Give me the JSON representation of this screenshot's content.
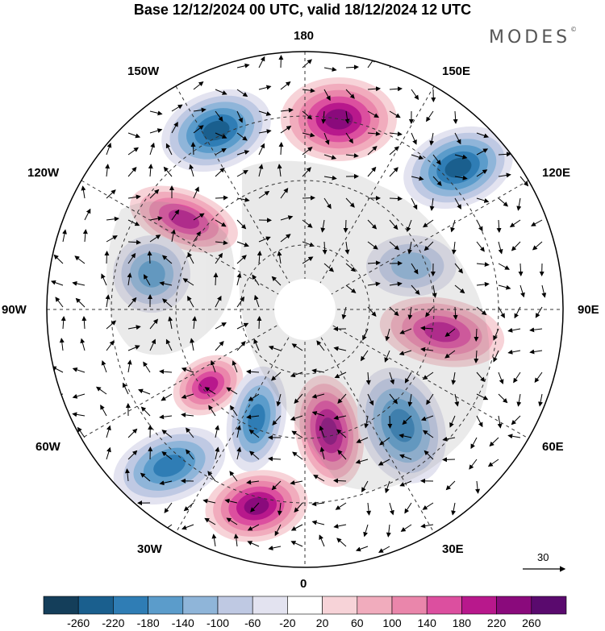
{
  "title": "Base 12/12/2024 00 UTC, valid 18/12/2024 12 UTC",
  "brand": "MODES",
  "brand_mark": "©",
  "longitude_labels": {
    "n180": "180",
    "w150": "150W",
    "e150": "150E",
    "w120": "120W",
    "e120": "120E",
    "w90": "90W",
    "e90": "90E",
    "w60": "60W",
    "e60": "60E",
    "w30": "30W",
    "e30": "30E",
    "s0": "0"
  },
  "reference_vector": {
    "value": "30"
  },
  "colorbar": {
    "levels": [
      "-260",
      "-220",
      "-180",
      "-140",
      "-100",
      "-60",
      "-20",
      "20",
      "60",
      "100",
      "140",
      "180",
      "220",
      "260"
    ],
    "colors": [
      "#143e5a",
      "#1a5f8e",
      "#2f7db5",
      "#5b9ccb",
      "#8fb5d9",
      "#bfc9e3",
      "#e3e3f0",
      "#ffffff",
      "#f7d3d8",
      "#f1acbd",
      "#ea86ab",
      "#dc4f9f",
      "#b8188c",
      "#8a0a7c",
      "#5a0a6e"
    ]
  },
  "anomaly_centers": [
    {
      "name": "negative-anomaly-150W",
      "value": -220
    },
    {
      "name": "positive-anomaly-180",
      "value": 220
    },
    {
      "name": "negative-anomaly-130E",
      "value": -220
    },
    {
      "name": "positive-anomaly-120W",
      "value": 180
    },
    {
      "name": "negative-anomaly-100W",
      "value": -140
    },
    {
      "name": "negative-anomaly-110E",
      "value": -100
    },
    {
      "name": "positive-anomaly-80E",
      "value": 180
    },
    {
      "name": "positive-anomaly-65W",
      "value": 180
    },
    {
      "name": "negative-anomaly-50W",
      "value": -180
    },
    {
      "name": "negative-anomaly-45W",
      "value": -180
    },
    {
      "name": "positive-anomaly-10E",
      "value": 220
    },
    {
      "name": "negative-anomaly-40E",
      "value": -180
    },
    {
      "name": "positive-anomaly-20W",
      "value": 220
    }
  ]
}
